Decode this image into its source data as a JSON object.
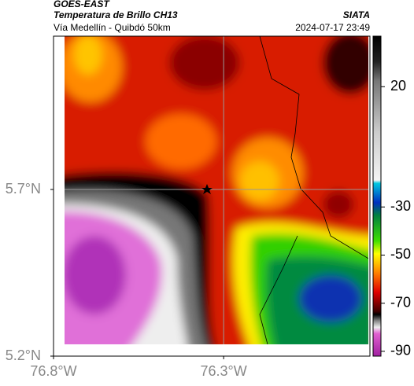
{
  "header": {
    "title": "GOES-EAST",
    "subtitle": "Temperatura de Brillo CH13",
    "source": "SIATA",
    "location": "Vía Medellín - Quibdó 50km",
    "timestamp": "2024-07-17 23:49"
  },
  "map": {
    "lon_range": [
      -76.8,
      -75.87
    ],
    "lat_range": [
      5.2,
      6.16
    ],
    "lon_ticks": [
      {
        "value": -76.8,
        "label": "76.8°W"
      },
      {
        "value": -76.3,
        "label": "76.3°W"
      }
    ],
    "lat_ticks": [
      {
        "value": 5.7,
        "label": "5.7°N"
      },
      {
        "value": 5.2,
        "label": "5.2°N"
      }
    ]
  },
  "colorbar": {
    "range": [
      -92,
      41
    ],
    "ticks": [
      20,
      -30,
      -50,
      -70,
      -90
    ]
  }
}
